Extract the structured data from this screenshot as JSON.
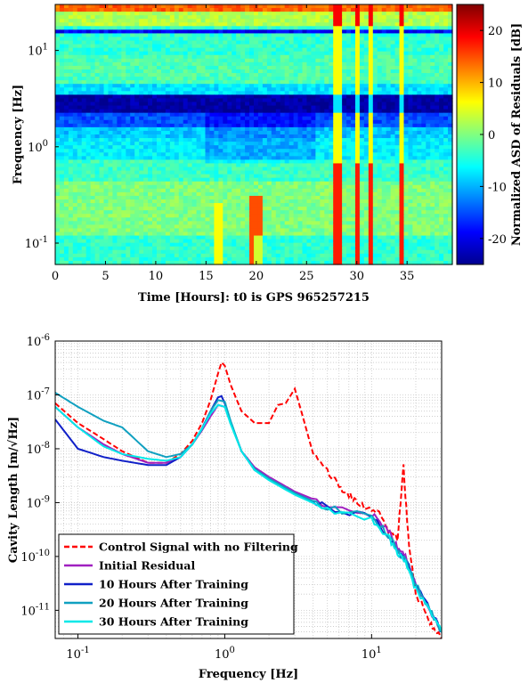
{
  "chart_data": [
    {
      "type": "heatmap",
      "xlabel": "Time [Hours]: t0 is GPS 965257215",
      "ylabel": "Frequency [Hz]",
      "colorbar_label": "Normalized ASD of Residuals [dB]",
      "xlim": [
        0,
        39.5
      ],
      "ylim": [
        0.06,
        30
      ],
      "yscale": "log",
      "clim": [
        -25,
        25
      ],
      "xticks": [
        "0",
        "5",
        "10",
        "15",
        "20",
        "25",
        "30",
        "35"
      ],
      "yticks": [
        {
          "value": 0.1,
          "mantissa": "10",
          "exp": "-1"
        },
        {
          "value": 1,
          "mantissa": "10",
          "exp": "0"
        },
        {
          "value": 10,
          "mantissa": "10",
          "exp": "1"
        }
      ],
      "colorbar_ticks": [
        "20",
        "10",
        "0",
        "-10",
        "-20"
      ],
      "colormap": [
        "#00008f",
        "#0000ff",
        "#0080ff",
        "#00ffff",
        "#80ff80",
        "#ffff00",
        "#ff8000",
        "#ff0000",
        "#800000"
      ]
    },
    {
      "type": "line",
      "xlabel": "Frequency [Hz]",
      "ylabel": "Cavity Length [m/√Hz]",
      "xscale": "log",
      "yscale": "log",
      "xlim": [
        0.07,
        30
      ],
      "ylim": [
        3e-12,
        1e-06
      ],
      "grid": true,
      "legend_position": "bottom-left",
      "xticks": [
        {
          "value": 0.1,
          "mantissa": "10",
          "exp": "-1"
        },
        {
          "value": 1,
          "mantissa": "10",
          "exp": "0"
        },
        {
          "value": 10,
          "mantissa": "10",
          "exp": "1"
        }
      ],
      "yticks": [
        {
          "value": 1e-06,
          "mantissa": "10",
          "exp": "-6"
        },
        {
          "value": 1e-07,
          "mantissa": "10",
          "exp": "-7"
        },
        {
          "value": 1e-08,
          "mantissa": "10",
          "exp": "-8"
        },
        {
          "value": 1e-09,
          "mantissa": "10",
          "exp": "-9"
        },
        {
          "value": 1e-10,
          "mantissa": "10",
          "exp": "-10"
        },
        {
          "value": 1e-11,
          "mantissa": "10",
          "exp": "-11"
        }
      ],
      "series": [
        {
          "name": "Control Signal with no Filtering",
          "color": "#ff0000",
          "dash": "dashed",
          "x": [
            0.07,
            0.1,
            0.15,
            0.2,
            0.3,
            0.4,
            0.5,
            0.6,
            0.7,
            0.8,
            0.9,
            0.95,
            1.0,
            1.1,
            1.3,
            1.6,
            2.0,
            2.3,
            2.6,
            3.0,
            3.5,
            4.0,
            5.0,
            6.0,
            7.0,
            8.0,
            10.0,
            12.0,
            13.0,
            15.0,
            16.5,
            18.0,
            20.0,
            23.0,
            26.0,
            30.0
          ],
          "y": [
            7e-08,
            3e-08,
            1.5e-08,
            9e-09,
            5.5e-09,
            5.5e-09,
            8e-09,
            1.4e-08,
            3e-08,
            8e-08,
            2.5e-07,
            4e-07,
            3.5e-07,
            1.5e-07,
            5e-08,
            3e-08,
            3e-08,
            6.5e-08,
            7e-08,
            1.3e-07,
            3e-08,
            8e-09,
            4e-09,
            2e-09,
            1.4e-09,
            1e-09,
            7e-10,
            5.5e-10,
            3e-10,
            2e-10,
            4.5e-09,
            1.5e-10,
            2e-11,
            1e-11,
            5e-12,
            3e-12
          ]
        },
        {
          "name": "Initial Residual",
          "color": "#a020c0",
          "dash": "solid",
          "x": [
            0.07,
            0.1,
            0.15,
            0.2,
            0.3,
            0.4,
            0.5,
            0.6,
            0.7,
            0.8,
            0.9,
            1.0,
            1.1,
            1.3,
            1.6,
            2.0,
            3.0,
            5.0,
            10.0,
            13.0,
            15.0,
            17.0,
            20.0,
            25.0,
            30.0
          ],
          "y": [
            6e-08,
            2.5e-08,
            1.2e-08,
            8e-09,
            5.5e-09,
            5.5e-09,
            7e-09,
            1.2e-08,
            2.2e-08,
            4e-08,
            6.5e-08,
            6e-08,
            3e-08,
            9e-09,
            4.5e-09,
            3e-09,
            1.6e-09,
            9e-10,
            6e-10,
            3e-10,
            1.5e-10,
            1e-10,
            3e-11,
            1e-11,
            4e-12
          ]
        },
        {
          "name": "10 Hours After Training",
          "color": "#1020c8",
          "dash": "solid",
          "x": [
            0.07,
            0.1,
            0.15,
            0.2,
            0.3,
            0.4,
            0.5,
            0.6,
            0.7,
            0.8,
            0.9,
            0.95,
            1.0,
            1.1,
            1.3,
            1.6,
            2.0,
            3.0,
            5.0,
            10.0,
            13.0,
            15.0,
            17.0,
            20.0,
            25.0,
            30.0
          ],
          "y": [
            3.5e-08,
            1e-08,
            7e-09,
            6e-09,
            5e-09,
            5e-09,
            7e-09,
            1.2e-08,
            2.4e-08,
            5e-08,
            9e-08,
            9.5e-08,
            7e-08,
            3e-08,
            9e-09,
            4e-09,
            2.7e-09,
            1.5e-09,
            8e-10,
            5.5e-10,
            2.5e-10,
            1.3e-10,
            9e-11,
            3e-11,
            1e-11,
            4e-12
          ]
        },
        {
          "name": "20 Hours After Training",
          "color": "#10a0c0",
          "dash": "solid",
          "x": [
            0.07,
            0.1,
            0.15,
            0.2,
            0.3,
            0.4,
            0.5,
            0.6,
            0.7,
            0.8,
            0.9,
            1.0,
            1.1,
            1.3,
            1.6,
            2.0,
            3.0,
            5.0,
            10.0,
            13.0,
            15.0,
            17.0,
            20.0,
            25.0,
            30.0
          ],
          "y": [
            1.1e-07,
            6e-08,
            3.3e-08,
            2.5e-08,
            9e-09,
            7e-09,
            8e-09,
            1.2e-08,
            2.3e-08,
            5e-08,
            8e-08,
            7.5e-08,
            3.2e-08,
            9e-09,
            4.2e-09,
            2.8e-09,
            1.5e-09,
            8e-10,
            5.5e-10,
            2.5e-10,
            1.3e-10,
            9e-11,
            3e-11,
            1e-11,
            4e-12
          ]
        },
        {
          "name": "30 Hours After Training",
          "color": "#00e8e8",
          "dash": "solid",
          "x": [
            0.07,
            0.1,
            0.15,
            0.2,
            0.3,
            0.4,
            0.5,
            0.6,
            0.7,
            0.8,
            0.9,
            1.0,
            1.1,
            1.3,
            1.6,
            2.0,
            3.0,
            5.0,
            10.0,
            13.0,
            15.0,
            17.0,
            20.0,
            25.0,
            30.0
          ],
          "y": [
            6e-08,
            2.5e-08,
            1.1e-08,
            8e-09,
            6.5e-09,
            6e-09,
            7e-09,
            1.2e-08,
            2.4e-08,
            4.5e-08,
            6.5e-08,
            6e-08,
            2.8e-08,
            9e-09,
            4e-09,
            2.6e-09,
            1.4e-09,
            7.5e-10,
            5e-10,
            2.3e-10,
            1.2e-10,
            8e-11,
            2.5e-11,
            9e-12,
            4e-12
          ]
        }
      ]
    }
  ]
}
